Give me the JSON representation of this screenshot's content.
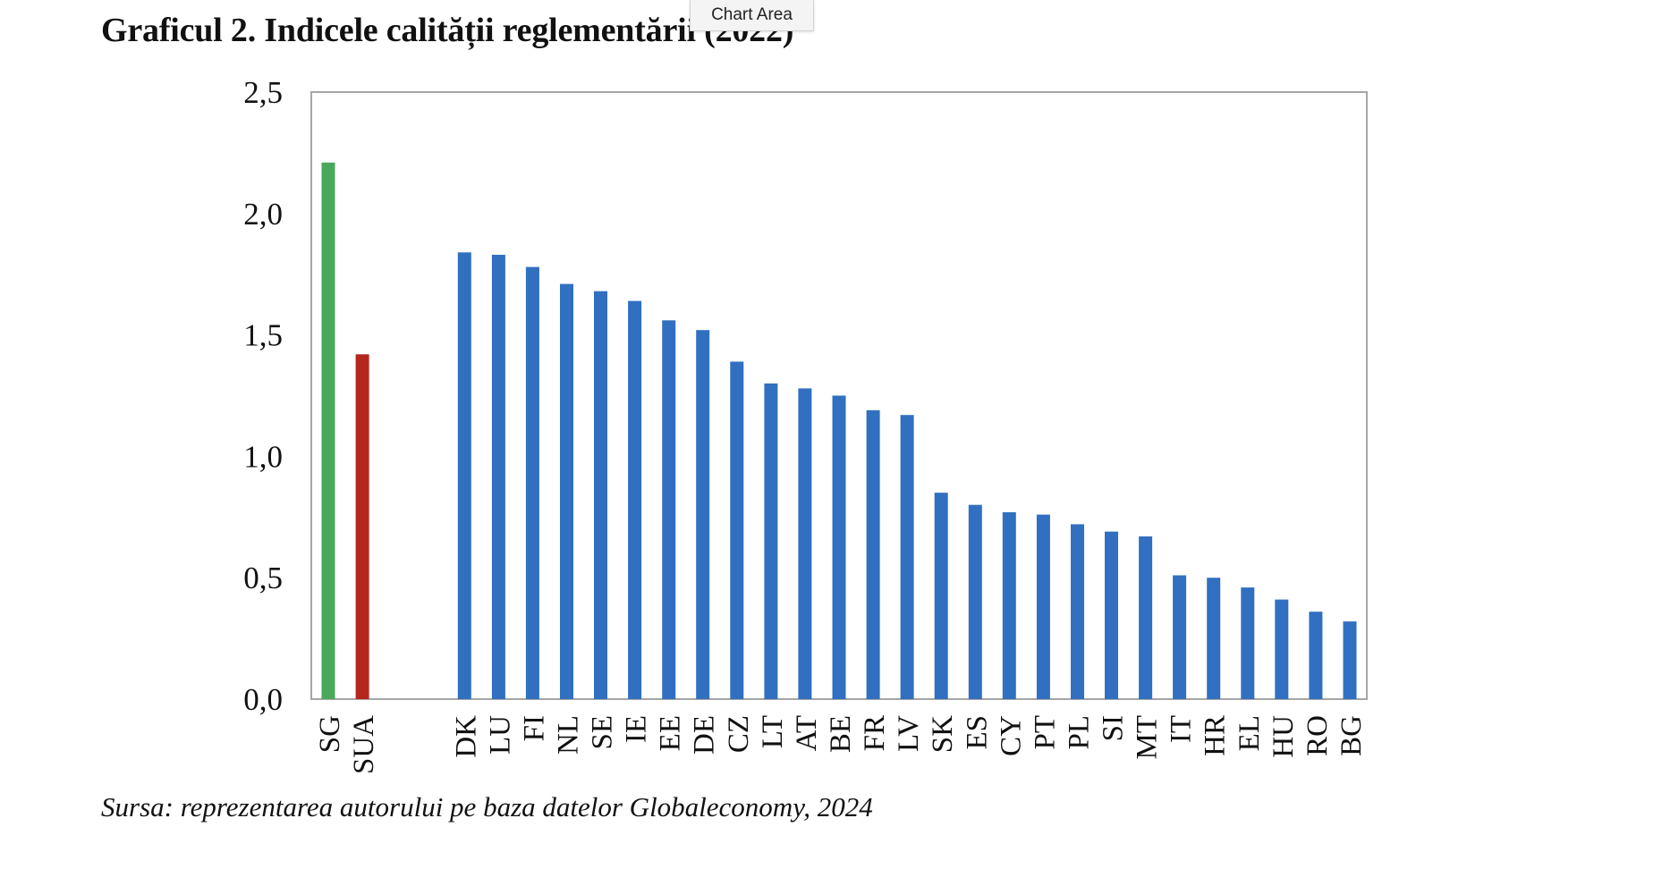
{
  "header": {
    "title": "Graficul 2. Indicele calității reglementării (2022)",
    "tooltip": "Chart Area"
  },
  "footer": {
    "source": "Sursa: reprezentarea autorului pe baza datelor Globaleconomy, 2024"
  },
  "colors": {
    "highlight_sg": "#4aa85a",
    "highlight_sua": "#b5261e",
    "eu_bars": "#3170c0",
    "plot_border": "#a6a6a6"
  },
  "chart_data": {
    "type": "bar",
    "title": "Graficul 2. Indicele calității reglementării (2022)",
    "xlabel": "",
    "ylabel": "",
    "ylim": [
      0,
      2.5
    ],
    "yticks": [
      "0,0",
      "0,5",
      "1,0",
      "1,5",
      "2,0",
      "2,5"
    ],
    "grid": false,
    "legend": "none",
    "categories": [
      "SG",
      "SUA",
      "",
      "",
      "DK",
      "LU",
      "FI",
      "NL",
      "SE",
      "IE",
      "EE",
      "DE",
      "CZ",
      "LT",
      "AT",
      "BE",
      "FR",
      "LV",
      "SK",
      "ES",
      "CY",
      "PT",
      "PL",
      "SI",
      "MT",
      "IT",
      "HR",
      "EL",
      "HU",
      "RO",
      "BG"
    ],
    "values": [
      2.21,
      1.42,
      null,
      null,
      1.84,
      1.83,
      1.78,
      1.71,
      1.68,
      1.64,
      1.56,
      1.52,
      1.39,
      1.3,
      1.28,
      1.25,
      1.19,
      1.17,
      0.85,
      0.8,
      0.77,
      0.76,
      0.72,
      0.69,
      0.67,
      0.51,
      0.5,
      0.46,
      0.41,
      0.36,
      0.32
    ]
  }
}
